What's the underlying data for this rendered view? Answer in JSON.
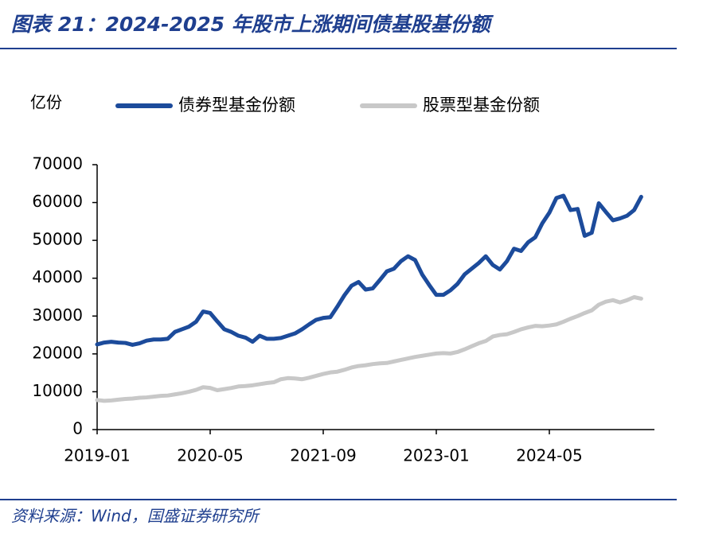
{
  "chart_data": {
    "type": "line",
    "title": "图表 21：2024-2025 年股市上涨期间债基股基份额",
    "y_unit": "亿份",
    "source": "资料来源：Wind，国盛证券研究所",
    "categories": [
      "2019-01",
      "2019-02",
      "2019-03",
      "2019-04",
      "2019-05",
      "2019-06",
      "2019-07",
      "2019-08",
      "2019-09",
      "2019-10",
      "2019-11",
      "2019-12",
      "2020-01",
      "2020-02",
      "2020-03",
      "2020-04",
      "2020-05",
      "2020-06",
      "2020-07",
      "2020-08",
      "2020-09",
      "2020-10",
      "2020-11",
      "2020-12",
      "2021-01",
      "2021-02",
      "2021-03",
      "2021-04",
      "2021-05",
      "2021-06",
      "2021-07",
      "2021-08",
      "2021-09",
      "2021-10",
      "2021-11",
      "2021-12",
      "2022-01",
      "2022-02",
      "2022-03",
      "2022-04",
      "2022-05",
      "2022-06",
      "2022-07",
      "2022-08",
      "2022-09",
      "2022-10",
      "2022-11",
      "2022-12",
      "2023-01",
      "2023-02",
      "2023-03",
      "2023-04",
      "2023-05",
      "2023-06",
      "2023-07",
      "2023-08",
      "2023-09",
      "2023-10",
      "2023-11",
      "2023-12",
      "2024-01",
      "2024-02",
      "2024-03",
      "2024-04",
      "2024-05",
      "2024-06",
      "2024-07",
      "2024-08",
      "2024-09",
      "2024-10",
      "2024-11",
      "2024-12",
      "2025-01",
      "2025-02",
      "2025-03",
      "2025-04",
      "2025-05",
      "2025-06"
    ],
    "xtick_indices": [
      0,
      16,
      32,
      48,
      64
    ],
    "series": [
      {
        "name": "债券型基金份额",
        "color": "#1c4b9b",
        "values": [
          22500,
          23000,
          23200,
          23000,
          22900,
          22400,
          22800,
          23500,
          23800,
          23800,
          24000,
          25800,
          26500,
          27200,
          28500,
          31200,
          30800,
          28600,
          26500,
          25800,
          24800,
          24300,
          23200,
          24800,
          24000,
          24000,
          24200,
          24800,
          25400,
          26500,
          27800,
          29000,
          29500,
          29700,
          32500,
          35500,
          38000,
          39000,
          37000,
          37300,
          39500,
          41800,
          42500,
          44500,
          45800,
          44800,
          41000,
          38200,
          35600,
          35600,
          36800,
          38500,
          41000,
          42500,
          44000,
          45800,
          43500,
          42300,
          44500,
          47800,
          47200,
          49500,
          50800,
          54500,
          57300,
          61200,
          61800,
          58000,
          58300,
          51200,
          52000,
          59800,
          57500,
          55300,
          55800,
          56500,
          58000,
          61500
        ]
      },
      {
        "name": "股票型基金份额",
        "color": "#c8c8c8",
        "values": [
          7800,
          7600,
          7700,
          7900,
          8100,
          8200,
          8400,
          8500,
          8700,
          8900,
          9000,
          9300,
          9600,
          10000,
          10500,
          11200,
          11000,
          10400,
          10700,
          11000,
          11400,
          11500,
          11700,
          12000,
          12300,
          12500,
          13300,
          13600,
          13500,
          13300,
          13700,
          14200,
          14700,
          15100,
          15300,
          15800,
          16400,
          16800,
          17000,
          17300,
          17500,
          17600,
          18000,
          18400,
          18800,
          19200,
          19500,
          19800,
          20100,
          20200,
          20100,
          20500,
          21200,
          22000,
          22800,
          23400,
          24600,
          25000,
          25200,
          25800,
          26500,
          27000,
          27400,
          27300,
          27500,
          27800,
          28500,
          29300,
          30000,
          30800,
          31500,
          33000,
          33800,
          34200,
          33600,
          34200,
          35000,
          34600
        ]
      }
    ],
    "ylim": [
      0,
      70000
    ],
    "yticks": [
      0,
      10000,
      20000,
      30000,
      40000,
      50000,
      60000,
      70000
    ]
  }
}
